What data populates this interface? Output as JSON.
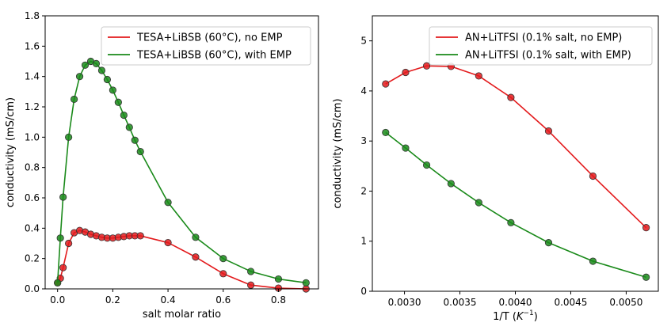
{
  "chart_data": [
    {
      "type": "line",
      "xlabel": "salt molar ratio",
      "ylabel": "conductivity (mS/cm)",
      "xlim": [
        -0.045,
        0.945
      ],
      "ylim": [
        0,
        1.8
      ],
      "xticks": [
        0.0,
        0.2,
        0.4,
        0.6,
        0.8
      ],
      "xtick_labels": [
        "0.0",
        "0.2",
        "0.4",
        "0.6",
        "0.8"
      ],
      "yticks": [
        0.0,
        0.2,
        0.4,
        0.6,
        0.8,
        1.0,
        1.2,
        1.4,
        1.6,
        1.8
      ],
      "ytick_labels": [
        "0.0",
        "0.2",
        "0.4",
        "0.6",
        "0.8",
        "1.0",
        "1.2",
        "1.4",
        "1.6",
        "1.8"
      ],
      "grid": false,
      "legend_position": "top-right",
      "series": [
        {
          "name": "TESA+LiBSB (60°C), no EMP",
          "color": "#e31a1c",
          "x": [
            0.0,
            0.01,
            0.02,
            0.04,
            0.06,
            0.08,
            0.1,
            0.12,
            0.14,
            0.16,
            0.18,
            0.2,
            0.22,
            0.24,
            0.26,
            0.28,
            0.3,
            0.4,
            0.5,
            0.6,
            0.7,
            0.8,
            0.9
          ],
          "y": [
            0.04,
            0.07,
            0.14,
            0.3,
            0.37,
            0.385,
            0.375,
            0.36,
            0.35,
            0.34,
            0.335,
            0.335,
            0.34,
            0.345,
            0.35,
            0.35,
            0.35,
            0.305,
            0.21,
            0.1,
            0.025,
            0.005,
            0.0
          ]
        },
        {
          "name": "TESA+LiBSB (60°C), with EMP",
          "color": "#1a8a1a",
          "x": [
            0.0,
            0.01,
            0.02,
            0.04,
            0.06,
            0.08,
            0.1,
            0.12,
            0.14,
            0.16,
            0.18,
            0.2,
            0.22,
            0.24,
            0.26,
            0.28,
            0.3,
            0.4,
            0.5,
            0.6,
            0.7,
            0.8,
            0.9
          ],
          "y": [
            0.04,
            0.335,
            0.605,
            1.0,
            1.25,
            1.4,
            1.475,
            1.5,
            1.485,
            1.44,
            1.38,
            1.31,
            1.23,
            1.145,
            1.065,
            0.98,
            0.905,
            0.57,
            0.34,
            0.2,
            0.115,
            0.065,
            0.04
          ]
        }
      ]
    },
    {
      "type": "line",
      "xlabel": "1/T (K⁻¹)",
      "xlabel_parts": {
        "main": "1/T (",
        "italic": "K",
        "sup": "−1",
        "end": ")"
      },
      "ylabel": "conductivity (mS/cm)",
      "xlim": [
        0.00271,
        0.00529
      ],
      "ylim": [
        0,
        5.5
      ],
      "xticks": [
        0.003,
        0.0035,
        0.004,
        0.0045,
        0.005
      ],
      "xtick_labels": [
        "0.0030",
        "0.0035",
        "0.0040",
        "0.0045",
        "0.0050"
      ],
      "yticks": [
        0,
        1,
        2,
        3,
        4,
        5
      ],
      "ytick_labels": [
        "0",
        "1",
        "2",
        "3",
        "4",
        "5"
      ],
      "grid": false,
      "legend_position": "top-right",
      "series": [
        {
          "name": "AN+LiTFSI (0.1% salt, no EMP)",
          "color": "#e31a1c",
          "x": [
            0.00283,
            0.00301,
            0.0032,
            0.00342,
            0.00367,
            0.00396,
            0.0043,
            0.0047,
            0.00518
          ],
          "y": [
            4.14,
            4.37,
            4.5,
            4.49,
            4.3,
            3.87,
            3.2,
            2.3,
            1.27
          ]
        },
        {
          "name": "AN+LiTFSI (0.1% salt, with EMP)",
          "color": "#1a8a1a",
          "x": [
            0.00283,
            0.00301,
            0.0032,
            0.00342,
            0.00367,
            0.00396,
            0.0043,
            0.0047,
            0.00518
          ],
          "y": [
            3.17,
            2.86,
            2.52,
            2.15,
            1.77,
            1.37,
            0.97,
            0.6,
            0.28
          ]
        }
      ]
    }
  ]
}
